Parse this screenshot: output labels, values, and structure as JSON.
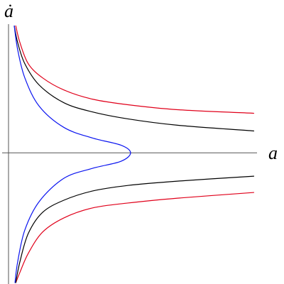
{
  "chart_data": {
    "type": "line",
    "xlabel": "a",
    "ylabel": "ȧ",
    "xlim": [
      0,
      1
    ],
    "ylim": [
      -1.03,
      1.0
    ],
    "series": [
      {
        "color": "#e0001a",
        "x": [
          0.029,
          0.046,
          0.08,
          0.138,
          0.224,
          0.339,
          0.483,
          0.684,
          0.994,
          null,
          0.994,
          0.684,
          0.483,
          0.339,
          0.224,
          0.138,
          0.08,
          0.046,
          0.029
        ],
        "values": [
          1.0,
          0.867,
          0.7,
          0.589,
          0.494,
          0.422,
          0.378,
          0.339,
          0.311,
          null,
          -0.311,
          -0.356,
          -0.394,
          -0.433,
          -0.511,
          -0.622,
          -0.789,
          -0.939,
          -1.022
        ]
      },
      {
        "color": "#000000",
        "x": [
          0.023,
          0.037,
          0.066,
          0.124,
          0.224,
          0.339,
          0.483,
          0.684,
          0.994,
          null,
          0.994,
          0.684,
          0.483,
          0.339,
          0.224,
          0.138,
          0.08,
          0.046,
          0.029
        ],
        "values": [
          1.0,
          0.867,
          0.7,
          0.533,
          0.394,
          0.322,
          0.267,
          0.217,
          0.172,
          null,
          -0.183,
          -0.222,
          -0.256,
          -0.3,
          -0.372,
          -0.467,
          -0.633,
          -0.856,
          -1.022
        ]
      },
      {
        "color": "#0a14f0",
        "x": [
          0.023,
          0.037,
          0.066,
          0.124,
          0.224,
          0.339,
          0.454,
          0.494,
          0.454,
          0.339,
          0.224,
          0.124,
          0.066,
          0.037,
          0.026
        ],
        "values": [
          1.0,
          0.811,
          0.589,
          0.367,
          0.2,
          0.117,
          0.061,
          0,
          -0.067,
          -0.122,
          -0.2,
          -0.383,
          -0.606,
          -0.856,
          -1.022
        ]
      }
    ]
  }
}
